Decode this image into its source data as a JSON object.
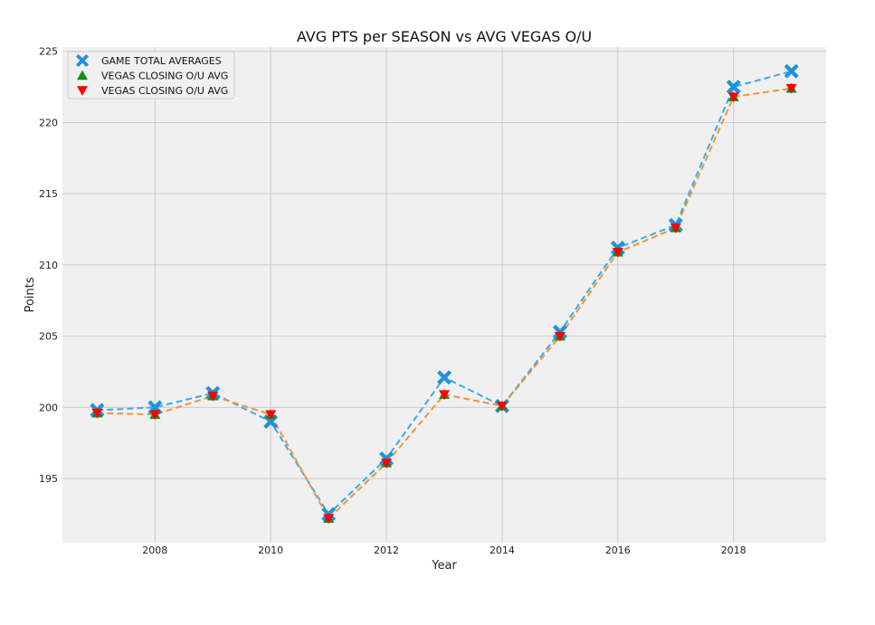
{
  "chart_data": {
    "type": "line",
    "title": "AVG PTS per SEASON vs AVG VEGAS O/U",
    "xlabel": "Year",
    "ylabel": "Points",
    "x": [
      2007,
      2008,
      2009,
      2010,
      2011,
      2012,
      2013,
      2014,
      2015,
      2016,
      2017,
      2018,
      2019
    ],
    "xlim": [
      2006.4,
      2019.6
    ],
    "ylim": [
      190.5,
      225.3
    ],
    "xticks": [
      "2008",
      "2010",
      "2012",
      "2014",
      "2016",
      "2018"
    ],
    "yticks": [
      "195",
      "200",
      "205",
      "210",
      "215",
      "220",
      "225"
    ],
    "grid": true,
    "legend_position": "top-left",
    "series": [
      {
        "name": "GAME TOTAL AVERAGES",
        "marker": "X",
        "color": "#1f93d8",
        "line_color": "#3aaae8",
        "values": [
          199.8,
          200.0,
          201.0,
          199.0,
          192.5,
          196.4,
          202.1,
          200.1,
          205.3,
          211.2,
          212.8,
          222.5,
          223.6
        ]
      },
      {
        "name": "VEGAS CLOSING O/U AVG",
        "marker": "triangle-up",
        "color": "#1a8a1a",
        "values": [
          199.6,
          199.5,
          200.8,
          199.5,
          192.2,
          196.1,
          200.9,
          200.1,
          205.0,
          210.9,
          212.6,
          221.8,
          222.4
        ]
      },
      {
        "name": "VEGAS CLOSING O/U AVG",
        "marker": "triangle-down",
        "color": "#ff0000",
        "line_color": "#f0953a",
        "values": [
          199.6,
          199.5,
          200.8,
          199.5,
          192.2,
          196.1,
          200.9,
          200.1,
          205.0,
          210.9,
          212.6,
          221.8,
          222.4
        ]
      }
    ]
  }
}
